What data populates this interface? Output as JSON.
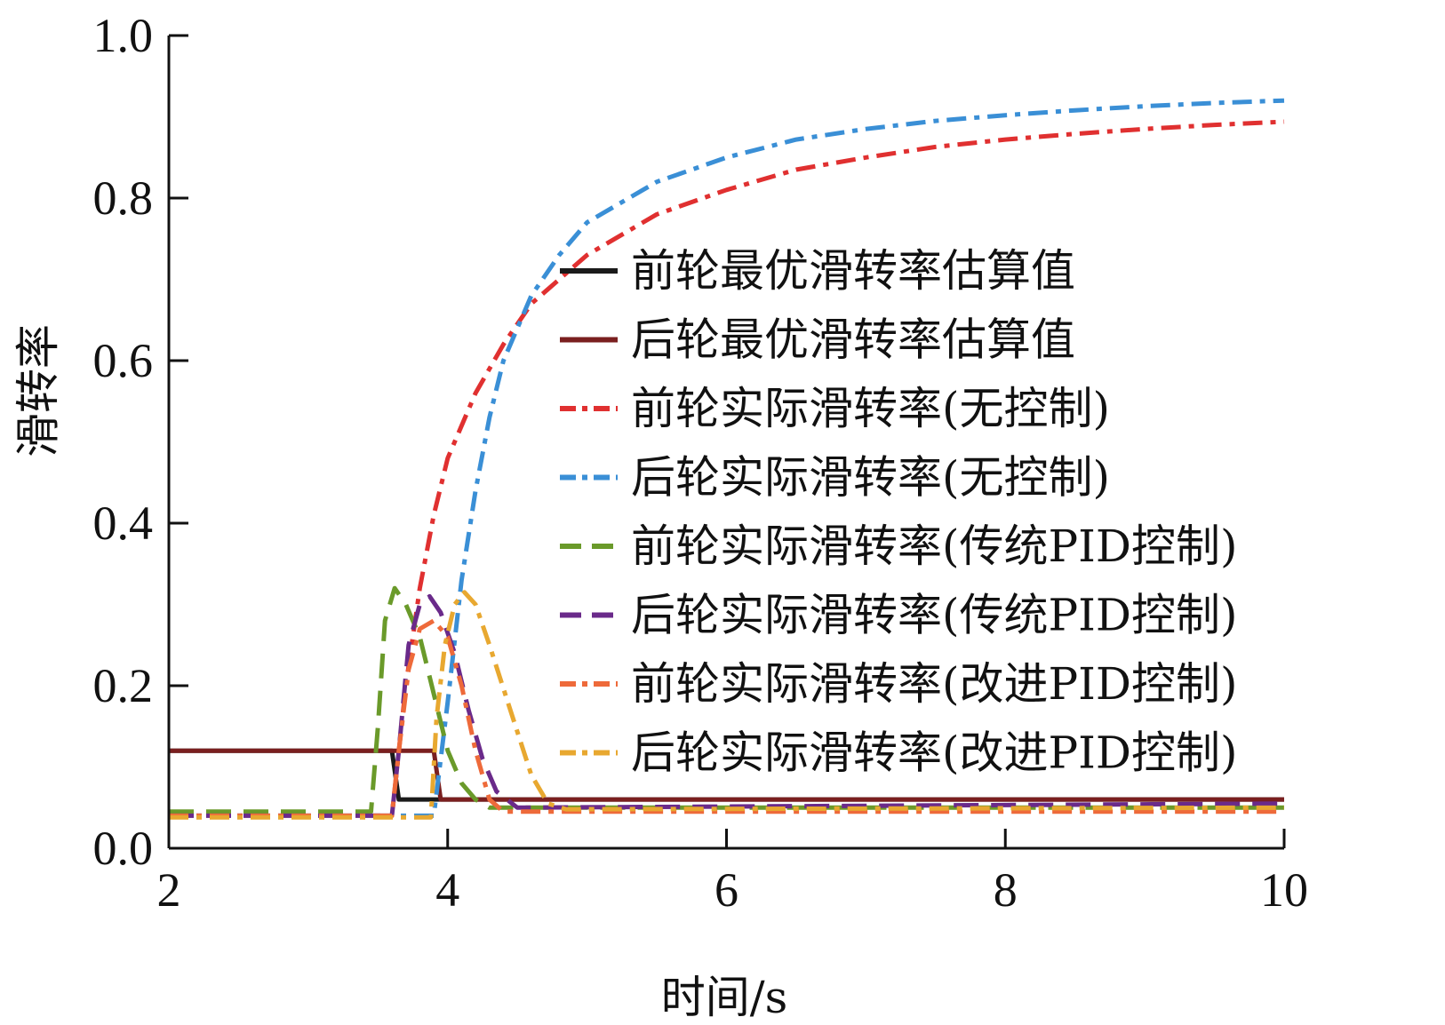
{
  "chart_data": {
    "type": "line",
    "xlabel": "时间/s",
    "ylabel": "滑转率",
    "xlim": [
      2,
      10
    ],
    "ylim": [
      0,
      1.0
    ],
    "x_ticks": [
      "2",
      "4",
      "6",
      "8",
      "10"
    ],
    "y_ticks": [
      "0.0",
      "0.2",
      "0.4",
      "0.6",
      "0.8",
      "1.0"
    ],
    "legend_position": "right",
    "series": [
      {
        "name": "前轮最优滑转率估算值",
        "color": "#1a1a1a",
        "dash": "solid",
        "width": 5,
        "points": [
          [
            2,
            0.12
          ],
          [
            3.6,
            0.12
          ],
          [
            3.65,
            0.06
          ],
          [
            3.9,
            0.06
          ],
          [
            3.95,
            0.06
          ],
          [
            10,
            0.06
          ]
        ]
      },
      {
        "name": "后轮最优滑转率估算值",
        "color": "#7a1f1f",
        "dash": "solid",
        "width": 5,
        "points": [
          [
            2,
            0.12
          ],
          [
            3.9,
            0.12
          ],
          [
            3.95,
            0.06
          ],
          [
            10,
            0.06
          ]
        ]
      },
      {
        "name": "前轮实际滑转率(无控制)",
        "color": "#e03030",
        "dash": "dashdot",
        "width": 5,
        "points": [
          [
            2,
            0.04
          ],
          [
            3.6,
            0.04
          ],
          [
            3.7,
            0.2
          ],
          [
            3.8,
            0.32
          ],
          [
            3.9,
            0.41
          ],
          [
            4.0,
            0.48
          ],
          [
            4.2,
            0.56
          ],
          [
            4.4,
            0.62
          ],
          [
            4.6,
            0.67
          ],
          [
            4.8,
            0.7
          ],
          [
            5.0,
            0.73
          ],
          [
            5.5,
            0.78
          ],
          [
            6.0,
            0.81
          ],
          [
            6.5,
            0.835
          ],
          [
            7,
            0.85
          ],
          [
            7.5,
            0.863
          ],
          [
            8,
            0.872
          ],
          [
            8.5,
            0.879
          ],
          [
            9,
            0.885
          ],
          [
            9.5,
            0.89
          ],
          [
            10,
            0.894
          ]
        ]
      },
      {
        "name": "后轮实际滑转率(无控制)",
        "color": "#3a8fd6",
        "dash": "dashdot",
        "width": 5,
        "points": [
          [
            2,
            0.04
          ],
          [
            3.9,
            0.04
          ],
          [
            4.0,
            0.18
          ],
          [
            4.1,
            0.33
          ],
          [
            4.2,
            0.44
          ],
          [
            4.3,
            0.53
          ],
          [
            4.4,
            0.6
          ],
          [
            4.6,
            0.68
          ],
          [
            4.8,
            0.73
          ],
          [
            5.0,
            0.77
          ],
          [
            5.5,
            0.82
          ],
          [
            6.0,
            0.85
          ],
          [
            6.5,
            0.872
          ],
          [
            7,
            0.885
          ],
          [
            7.5,
            0.895
          ],
          [
            8,
            0.902
          ],
          [
            8.5,
            0.908
          ],
          [
            9,
            0.913
          ],
          [
            9.5,
            0.917
          ],
          [
            10,
            0.92
          ]
        ]
      },
      {
        "name": "前轮实际滑转率(传统PID控制)",
        "color": "#6a9a2a",
        "dash": "dash",
        "width": 5,
        "points": [
          [
            2,
            0.045
          ],
          [
            3.45,
            0.045
          ],
          [
            3.5,
            0.15
          ],
          [
            3.55,
            0.28
          ],
          [
            3.62,
            0.32
          ],
          [
            3.7,
            0.3
          ],
          [
            3.8,
            0.26
          ],
          [
            3.9,
            0.19
          ],
          [
            4.0,
            0.12
          ],
          [
            4.1,
            0.08
          ],
          [
            4.2,
            0.06
          ],
          [
            4.3,
            0.05
          ],
          [
            10,
            0.05
          ]
        ]
      },
      {
        "name": "后轮实际滑转率(传统PID控制)",
        "color": "#6a2a8a",
        "dash": "dash",
        "width": 5,
        "points": [
          [
            2,
            0.04
          ],
          [
            3.6,
            0.04
          ],
          [
            3.65,
            0.12
          ],
          [
            3.72,
            0.25
          ],
          [
            3.8,
            0.3
          ],
          [
            3.87,
            0.31
          ],
          [
            3.95,
            0.29
          ],
          [
            4.05,
            0.24
          ],
          [
            4.15,
            0.17
          ],
          [
            4.25,
            0.11
          ],
          [
            4.35,
            0.07
          ],
          [
            4.5,
            0.05
          ],
          [
            10,
            0.055
          ]
        ]
      },
      {
        "name": "前轮实际滑转率(改进PID控制)",
        "color": "#ee6a3a",
        "dash": "dashdot",
        "width": 5,
        "points": [
          [
            2,
            0.04
          ],
          [
            3.6,
            0.04
          ],
          [
            3.65,
            0.12
          ],
          [
            3.72,
            0.22
          ],
          [
            3.8,
            0.27
          ],
          [
            3.9,
            0.28
          ],
          [
            4.0,
            0.26
          ],
          [
            4.1,
            0.2
          ],
          [
            4.2,
            0.12
          ],
          [
            4.3,
            0.06
          ],
          [
            4.4,
            0.045
          ],
          [
            10,
            0.045
          ]
        ]
      },
      {
        "name": "后轮实际滑转率(改进PID控制)",
        "color": "#e8a830",
        "dash": "dashdot",
        "width": 5,
        "points": [
          [
            2,
            0.038
          ],
          [
            3.88,
            0.038
          ],
          [
            3.92,
            0.16
          ],
          [
            3.98,
            0.25
          ],
          [
            4.05,
            0.3
          ],
          [
            4.12,
            0.315
          ],
          [
            4.2,
            0.3
          ],
          [
            4.3,
            0.25
          ],
          [
            4.45,
            0.17
          ],
          [
            4.6,
            0.09
          ],
          [
            4.72,
            0.055
          ],
          [
            4.85,
            0.048
          ],
          [
            10,
            0.05
          ]
        ]
      }
    ]
  }
}
